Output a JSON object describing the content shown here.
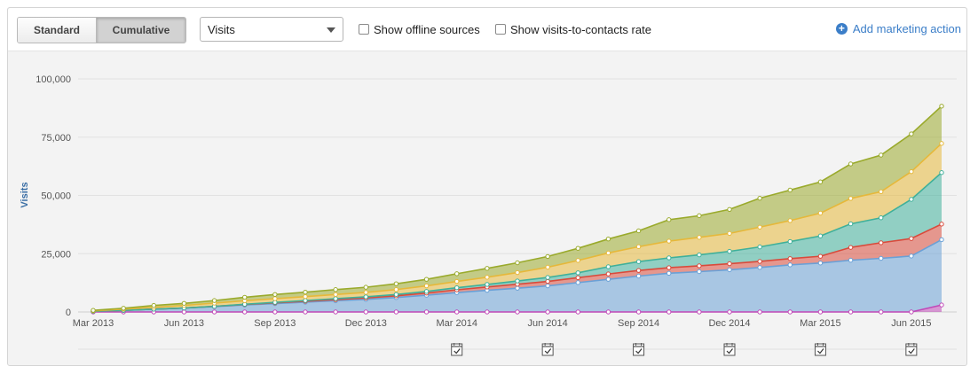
{
  "toolbar": {
    "standard_label": "Standard",
    "cumulative_label": "Cumulative",
    "metric_select_value": "Visits",
    "offline_label": "Show offline sources",
    "rate_label": "Show visits-to-contacts rate",
    "add_action_label": "Add marketing action"
  },
  "colors": {
    "s1": "#6aa0d6",
    "s2": "#d94a3b",
    "s3": "#3fb09a",
    "s4": "#e6b83a",
    "s5": "#9aaa2c",
    "s6": "#c048b8"
  },
  "chart_data": {
    "type": "area",
    "stacked": true,
    "title": "",
    "xlabel": "",
    "ylabel": "Visits",
    "ylim": [
      0,
      100000
    ],
    "yticks": [
      0,
      25000,
      50000,
      75000,
      100000
    ],
    "ytick_labels": [
      "0",
      "25,000",
      "50,000",
      "75,000",
      "100,000"
    ],
    "xtick_labels": [
      "Mar 2013",
      "Jun 2013",
      "Sep 2013",
      "Dec 2013",
      "Mar 2014",
      "Jun 2014",
      "Sep 2014",
      "Dec 2014",
      "Mar 2015",
      "Jun 2015"
    ],
    "xtick_months": [
      0,
      3,
      6,
      9,
      12,
      15,
      18,
      21,
      24,
      27
    ],
    "x_months": [
      0,
      1,
      2,
      3,
      4,
      5,
      6,
      7,
      8,
      9,
      10,
      11,
      12,
      13,
      14,
      15,
      16,
      17,
      18,
      19,
      20,
      21,
      22,
      23,
      24,
      25,
      26,
      27,
      28
    ],
    "event_months": [
      12,
      15,
      18,
      21,
      24,
      27
    ],
    "grid": true,
    "series": [
      {
        "color_key": "s6",
        "values": [
          0,
          0,
          0,
          0,
          0,
          0,
          0,
          0,
          0,
          0,
          0,
          0,
          0,
          0,
          0,
          0,
          0,
          0,
          0,
          0,
          0,
          0,
          0,
          0,
          0,
          0,
          0,
          0,
          3000
        ]
      },
      {
        "color_key": "s1",
        "values": [
          300,
          700,
          1200,
          1700,
          2300,
          3000,
          3600,
          4200,
          4800,
          5400,
          6200,
          7200,
          8300,
          9300,
          10200,
          11200,
          12600,
          14000,
          15400,
          16600,
          17300,
          18100,
          19100,
          20200,
          21000,
          22200,
          23000,
          24000,
          28000
        ]
      },
      {
        "color_key": "s2",
        "values": [
          0,
          0,
          0,
          0,
          100,
          200,
          300,
          400,
          500,
          600,
          700,
          900,
          1200,
          1400,
          1700,
          1900,
          2100,
          2300,
          2400,
          2400,
          2500,
          2600,
          2600,
          2700,
          2900,
          5500,
          6700,
          7500,
          6700
        ]
      },
      {
        "color_key": "s3",
        "values": [
          0,
          0,
          0,
          0,
          0,
          100,
          200,
          300,
          400,
          500,
          600,
          700,
          900,
          1100,
          1400,
          1700,
          2100,
          3100,
          3800,
          4200,
          4700,
          5300,
          6200,
          7300,
          8700,
          10100,
          10700,
          16800,
          22100
        ]
      },
      {
        "color_key": "s4",
        "values": [
          200,
          500,
          800,
          1100,
          1400,
          1500,
          1600,
          1700,
          1800,
          1900,
          2100,
          2400,
          2700,
          3100,
          3600,
          4400,
          5300,
          5900,
          6400,
          7200,
          7500,
          7700,
          8500,
          9000,
          9800,
          10900,
          11200,
          11900,
          12500
        ]
      },
      {
        "color_key": "s5",
        "values": [
          200,
          400,
          800,
          900,
          1100,
          1500,
          1800,
          1900,
          2100,
          2200,
          2500,
          2800,
          3300,
          3800,
          4200,
          4600,
          5200,
          6000,
          6800,
          9200,
          9300,
          10300,
          12400,
          13100,
          13400,
          14800,
          15700,
          16200,
          16000
        ]
      }
    ]
  }
}
